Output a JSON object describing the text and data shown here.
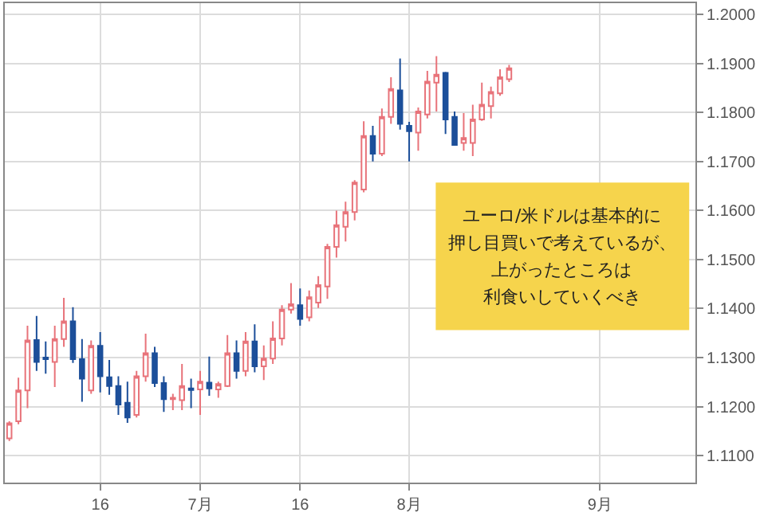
{
  "chart_data": {
    "type": "candlestick",
    "categories": [
      null,
      null,
      null,
      null,
      null,
      null,
      null,
      null,
      null,
      null,
      "16",
      null,
      null,
      null,
      null,
      null,
      null,
      null,
      null,
      null,
      null,
      "7月",
      null,
      null,
      null,
      null,
      null,
      null,
      null,
      null,
      null,
      null,
      "16",
      null,
      null,
      null,
      null,
      null,
      null,
      null,
      null,
      null,
      null,
      null,
      "8月",
      null,
      null,
      null,
      null,
      null,
      null,
      null,
      null,
      null,
      null,
      null,
      null,
      null,
      null,
      null,
      null,
      null,
      null,
      null,
      null,
      "9月",
      null,
      null,
      null,
      null,
      null,
      null,
      null,
      null,
      null,
      null
    ],
    "ylim": [
      1.1045,
      1.2023
    ],
    "yticks": [
      {
        "value": 1.11,
        "label": "1.1100"
      },
      {
        "value": 1.12,
        "label": "1.1200"
      },
      {
        "value": 1.13,
        "label": "1.1300"
      },
      {
        "value": 1.14,
        "label": "1.1400"
      },
      {
        "value": 1.15,
        "label": "1.1500"
      },
      {
        "value": 1.16,
        "label": "1.1600"
      },
      {
        "value": 1.17,
        "label": "1.1700"
      },
      {
        "value": 1.18,
        "label": "1.1800"
      },
      {
        "value": 1.19,
        "label": "1.1900"
      },
      {
        "value": 1.2,
        "label": "1.2000"
      }
    ],
    "grid": true,
    "series": [
      {
        "color": "#e8737a",
        "ohlc": [
          [
            1.1135,
            1.117,
            1.113,
            1.1166
          ],
          [
            1.117,
            1.1259,
            1.1164,
            1.1233
          ],
          [
            1.1233,
            1.1365,
            1.1197,
            1.1335
          ],
          null,
          null,
          [
            1.1291,
            1.1365,
            1.124,
            1.1338
          ],
          [
            1.1338,
            1.1422,
            1.1322,
            1.1374
          ],
          null,
          null,
          [
            1.1233,
            1.1335,
            1.1226,
            1.1324
          ],
          null,
          null,
          null,
          null,
          [
            1.1183,
            1.1273,
            1.1178,
            1.1262
          ],
          [
            1.1262,
            1.1349,
            1.1251,
            1.1309
          ],
          null,
          null,
          [
            1.1215,
            1.1226,
            1.1193,
            1.1218
          ],
          [
            1.1213,
            1.1287,
            1.1193,
            1.1242
          ],
          null,
          [
            1.1235,
            1.1273,
            1.1183,
            1.1251
          ],
          null,
          [
            1.1235,
            1.1251,
            1.1218,
            1.1246
          ],
          [
            1.1242,
            1.1346,
            1.124,
            1.1309
          ],
          null,
          [
            1.1273,
            1.1352,
            1.1262,
            1.1333
          ],
          null,
          [
            1.1282,
            1.1325,
            1.1254,
            1.1298
          ],
          [
            1.1298,
            1.1374,
            1.1287,
            1.1339
          ],
          [
            1.1339,
            1.1407,
            1.1325,
            1.1398
          ],
          [
            1.1398,
            1.1452,
            1.139,
            1.1409
          ],
          null,
          [
            1.1382,
            1.1437,
            1.1374,
            1.1423
          ],
          [
            1.1412,
            1.1466,
            1.1401,
            1.1448
          ],
          [
            1.1445,
            1.1532,
            1.142,
            1.1526
          ],
          [
            1.1526,
            1.16,
            1.1504,
            1.157
          ],
          [
            1.1567,
            1.1618,
            1.1537,
            1.1597
          ],
          [
            1.1597,
            1.1662,
            1.158,
            1.1657
          ],
          [
            1.1643,
            1.1782,
            1.1637,
            1.1752
          ],
          null,
          [
            1.1716,
            1.1808,
            1.1711,
            1.1791
          ],
          [
            1.1791,
            1.1872,
            1.1777,
            1.1848
          ],
          null,
          null,
          [
            1.1759,
            1.181,
            1.1722,
            1.1802
          ],
          [
            1.1796,
            1.1885,
            1.1788,
            1.1863
          ],
          [
            1.1861,
            1.1915,
            1.1802,
            1.1877
          ],
          null,
          null,
          [
            1.1738,
            1.1799,
            1.1722,
            1.1748
          ],
          [
            1.1738,
            1.1816,
            1.1711,
            1.1786
          ],
          [
            1.1786,
            1.1861,
            1.1783,
            1.1816
          ],
          [
            1.1813,
            1.1853,
            1.1788,
            1.1842
          ],
          [
            1.1839,
            1.1888,
            1.1834,
            1.1872
          ],
          [
            1.1868,
            1.1897,
            1.1862,
            1.189
          ],
          null,
          null,
          null,
          null,
          null,
          null,
          null,
          null,
          null,
          null,
          null,
          null,
          null,
          null,
          null,
          null,
          null,
          null,
          null,
          null
        ]
      },
      {
        "color": "#1c4f9a",
        "ohlc": [
          null,
          null,
          null,
          [
            1.1336,
            1.1385,
            1.1273,
            1.1291
          ],
          [
            1.13,
            1.1333,
            1.1267,
            1.1297
          ],
          null,
          null,
          [
            1.1374,
            1.1403,
            1.1289,
            1.1297
          ],
          [
            1.1297,
            1.1338,
            1.121,
            1.1257
          ],
          null,
          [
            1.1324,
            1.1352,
            1.1229,
            1.1262
          ],
          [
            1.126,
            1.1295,
            1.1224,
            1.1242
          ],
          [
            1.1242,
            1.1262,
            1.1183,
            1.1204
          ],
          [
            1.1208,
            1.1251,
            1.1167,
            1.1178
          ],
          null,
          null,
          [
            1.1309,
            1.1322,
            1.124,
            1.1248
          ],
          [
            1.1248,
            1.1262,
            1.1189,
            1.1215
          ],
          null,
          null,
          [
            1.1237,
            1.1257,
            1.1197,
            1.1234
          ],
          null,
          [
            1.1249,
            1.1302,
            1.1222,
            1.1237
          ],
          null,
          null,
          [
            1.1309,
            1.1335,
            1.1257,
            1.1273
          ],
          null,
          [
            1.1333,
            1.1368,
            1.127,
            1.1282
          ],
          null,
          null,
          null,
          null,
          [
            1.1407,
            1.1441,
            1.1365,
            1.1379
          ],
          null,
          null,
          null,
          null,
          null,
          null,
          null,
          [
            1.1752,
            1.1773,
            1.17,
            1.1716
          ],
          null,
          null,
          [
            1.1845,
            1.191,
            1.1765,
            1.1777
          ],
          [
            1.1773,
            1.1781,
            1.17,
            1.1762
          ],
          null,
          null,
          null,
          [
            1.1881,
            1.1883,
            1.1756,
            1.1786
          ],
          [
            1.1791,
            1.1802,
            1.1732,
            1.1734
          ],
          null,
          null,
          null,
          null,
          null,
          null,
          null,
          null,
          null,
          null,
          null,
          null,
          null,
          null,
          null,
          null,
          null,
          null,
          null,
          null,
          null,
          null,
          null,
          null,
          null,
          null
        ]
      }
    ],
    "annotations": [
      "ユーロ/米ドルは基本的に",
      "押し目買いで考えているが、",
      "上がったところは",
      "利食いしていくべき"
    ]
  }
}
